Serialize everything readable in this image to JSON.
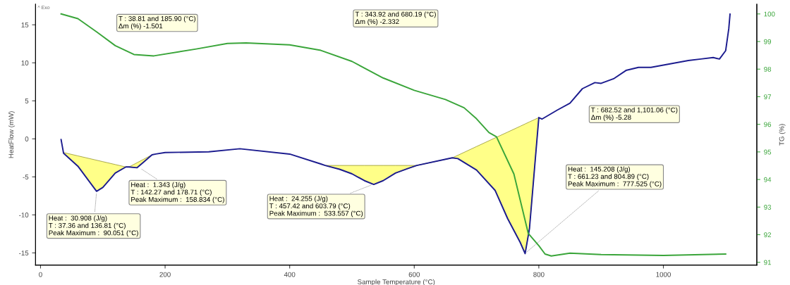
{
  "chart_data": {
    "type": "line",
    "xlabel": "Sample Temperature (°C)",
    "ylabel": "HeatFlow (mW)",
    "y2label": "TG (%)",
    "xlim": [
      -8,
      1150
    ],
    "xticks": [
      0,
      200,
      400,
      600,
      800,
      1000
    ],
    "ylim": [
      -16.6,
      17.7
    ],
    "yticks": [
      -15,
      -10,
      -5,
      0,
      5,
      10,
      15
    ],
    "y2lim": [
      90.9,
      100.35
    ],
    "y2ticks": [
      91,
      92,
      93,
      94,
      95,
      96,
      97,
      98,
      99,
      100
    ],
    "grid": false,
    "legend": false,
    "line_style": "solid",
    "marker": "none",
    "series": [
      {
        "color": "#1c1c8f",
        "x": [
          33,
          37,
          60,
          90,
          100,
          120,
          137,
          142,
          155,
          165,
          179,
          185,
          200,
          270,
          320,
          400,
          450,
          457,
          480,
          500,
          520,
          535,
          550,
          570,
          590,
          604,
          661,
          670,
          700,
          730,
          750,
          770,
          778,
          785,
          793,
          800,
          805,
          830,
          850,
          870,
          890,
          900,
          920,
          940,
          960,
          980,
          1000,
          1020,
          1040,
          1060,
          1080,
          1090,
          1100,
          1105,
          1107
        ],
        "values": [
          -0.1,
          -1.9,
          -3.6,
          -6.9,
          -6.4,
          -4.5,
          -3.7,
          -3.7,
          -3.8,
          -3.1,
          -2.1,
          -2.0,
          -1.8,
          -1.7,
          -1.3,
          -2.0,
          -3.3,
          -3.5,
          -4.0,
          -4.6,
          -5.5,
          -6.0,
          -5.5,
          -4.5,
          -3.9,
          -3.5,
          -2.5,
          -2.6,
          -4.1,
          -6.8,
          -10.5,
          -13.6,
          -15.1,
          -11.8,
          -4.0,
          2.8,
          2.6,
          3.8,
          4.7,
          6.6,
          7.4,
          7.3,
          7.9,
          9.0,
          9.4,
          9.4,
          9.7,
          10.0,
          10.3,
          10.5,
          10.7,
          10.5,
          11.6,
          14.5,
          16.4
        ],
        "lower": [
          null,
          -1.8,
          -2.24,
          -2.81,
          -3.0,
          -3.38,
          -3.7,
          -3.7,
          -3.14,
          -2.71,
          -2.1,
          null,
          null,
          null,
          null,
          null,
          null,
          -3.5,
          -3.5,
          -3.5,
          -3.5,
          -3.5,
          -3.5,
          -3.5,
          -3.5,
          -3.5,
          -2.5,
          -2.16,
          -1.01,
          0.13,
          0.89,
          1.65,
          1.96,
          2.23,
          2.53,
          2.8,
          null,
          null,
          null,
          null,
          null,
          null,
          null,
          null,
          null,
          null,
          null,
          null,
          null,
          null,
          null,
          null,
          null,
          null,
          null
        ],
        "upper": [
          null,
          -1.9,
          -3.6,
          -6.9,
          -6.4,
          -4.5,
          -3.7,
          -3.7,
          -3.8,
          -3.1,
          -2.1,
          null,
          null,
          null,
          null,
          null,
          null,
          -3.5,
          -4.0,
          -4.6,
          -5.5,
          -6.0,
          -5.5,
          -4.5,
          -3.9,
          -3.5,
          -2.5,
          -2.6,
          -4.1,
          -6.8,
          -10.5,
          -13.6,
          -15.1,
          -11.8,
          -4.0,
          2.8,
          null,
          null,
          null,
          null,
          null,
          null,
          null,
          null,
          null,
          null,
          null,
          null,
          null,
          null,
          null,
          null,
          null,
          null,
          null
        ]
      },
      {
        "axis": "y2",
        "color": "#3aa53a",
        "x": [
          33,
          60,
          90,
          120,
          150,
          182,
          250,
          300,
          330,
          400,
          450,
          500,
          550,
          600,
          650,
          680,
          700,
          720,
          732,
          760,
          783,
          800,
          810,
          820,
          850,
          900,
          1000,
          1100
        ],
        "values": [
          100.0,
          99.83,
          99.35,
          98.85,
          98.53,
          98.48,
          98.73,
          98.93,
          98.95,
          98.88,
          98.68,
          98.28,
          97.68,
          97.23,
          96.9,
          96.6,
          96.2,
          95.7,
          95.55,
          94.2,
          92.05,
          91.6,
          91.3,
          91.23,
          91.33,
          91.28,
          91.25,
          91.3
        ]
      }
    ],
    "annotations": [
      "T : 38.81 and 185.90 (°C)\nΔm (%) -1.501",
      "T : 343.92 and 680.19 (°C)\nΔm (%) -2.332",
      "T : 682.52 and 1,101.06 (°C)\nΔm (%) -5.28",
      {
        "text": "Heat :  30.908 (J/g)\nT : 37.36 and 136.81 (°C)\nPeak Maximum :  90.051 (°C)",
        "x": 90.051,
        "y": -6.9
      },
      {
        "text": "Heat :  1.343 (J/g)\nT : 142.27 and 178.71 (°C)\nPeak Maximum :  158.834 (°C)",
        "x": 158.834,
        "y": -3.8
      },
      {
        "text": "Heat :  24.255 (J/g)\nT : 457.42 and 603.79 (°C)\nPeak Maximum :  533.557 (°C)",
        "x": 533.557,
        "y": -6.0
      },
      {
        "text": "Heat :  145.208 (J/g)\nT : 661.23 and 804.89 (°C)\nPeak Maximum :  777.525 (°C)",
        "x": 777.525,
        "y": -15.1
      },
      "^ Exo"
    ]
  }
}
